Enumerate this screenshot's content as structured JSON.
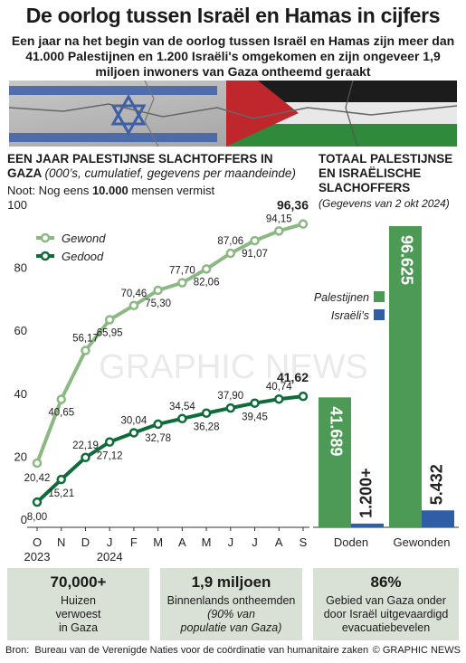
{
  "header": {
    "title": "De oorlog tussen Israël en Hamas in cijfers",
    "subtitle": "Een jaar na het begin van de oorlog tussen Israël en Hamas zijn meer dan 41.000 Palestijnen en 1.200 Israëli's omgekomen en zijn ongeveer 1,9 miljoen inwoners van Gaza ontheemd geraakt"
  },
  "left_panel": {
    "title": "EEN JAAR PALESTIJNSE SLACHTOFFERS IN GAZA",
    "subtitle": "(000’s, cumulatief, gegevens per maandeinde)",
    "note_prefix": "Noot: Nog eens ",
    "note_bold": "10.000",
    "note_suffix": " mensen vermist"
  },
  "right_panel": {
    "title": "TOTAAL PALESTIJNSE EN ISRAËLISCHE SLACHOFFERS",
    "subtitle": "(Gegevens van 2 okt 2024)"
  },
  "watermark": "GRAPHIC NEWS",
  "colors": {
    "wounded_line": "#8bb883",
    "killed_line": "#0f6b3a",
    "palestinians_bar": "#4d9a57",
    "israelis_bar": "#2f5ea6",
    "stat_box": "#d9e1d6"
  },
  "chart_data": [
    {
      "type": "line",
      "categories": [
        "O",
        "N",
        "D",
        "J",
        "F",
        "M",
        "A",
        "M",
        "J",
        "J",
        "A",
        "S"
      ],
      "year_labels": [
        "2023",
        "2024"
      ],
      "ylim": [
        0,
        100
      ],
      "yticks": [
        0,
        20,
        40,
        60,
        80,
        100
      ],
      "grid": false,
      "legend_placement": "top-left",
      "series": [
        {
          "name": "Gewond",
          "values": [
            20.42,
            40.65,
            56.17,
            65.95,
            70.46,
            75.3,
            77.7,
            82.06,
            87.06,
            91.07,
            94.15,
            96.36
          ],
          "labels": [
            "20,42",
            "40,65",
            "56,17",
            "65,95",
            "70,46",
            "75,30",
            "77,70",
            "82,06",
            "87,06",
            "91,07",
            "94,15",
            "96,36"
          ]
        },
        {
          "name": "Gedood",
          "values": [
            8.0,
            15.21,
            22.19,
            27.12,
            30.04,
            32.78,
            34.54,
            36.28,
            37.9,
            39.45,
            40.74,
            41.62
          ],
          "labels": [
            "8,00",
            "15,21",
            "22,19",
            "27,12",
            "30,04",
            "32,78",
            "34,54",
            "36,28",
            "37,90",
            "39,45",
            "40,74",
            "41,62"
          ]
        }
      ]
    },
    {
      "type": "bar",
      "categories": [
        "Doden",
        "Gewonden"
      ],
      "series": [
        {
          "name": "Palestijnen",
          "values": [
            41689,
            96625
          ],
          "labels": [
            "41.689",
            "96.625"
          ]
        },
        {
          "name": "Israëli’s",
          "values": [
            1200,
            5432
          ],
          "labels": [
            "1.200+",
            "5.432"
          ]
        }
      ]
    }
  ],
  "stats": [
    {
      "value": "70,000+",
      "lines": [
        "Huizen",
        "verwoest",
        "in Gaza"
      ]
    },
    {
      "value": "1,9 miljoen",
      "lines": [
        "Binnenlands ontheemden",
        "(90% van",
        "populatie van Gaza)"
      ]
    },
    {
      "value": "86%",
      "lines": [
        "Gebied van Gaza onder",
        "door Israël uitgevaardigd",
        "evacuatiebevelen"
      ]
    }
  ],
  "footer": {
    "source_label": "Bron:",
    "source": "Bureau van de Verenigde Naties voor de coördinatie van humanitaire zaken",
    "credit": "© GRAPHIC NEWS"
  }
}
